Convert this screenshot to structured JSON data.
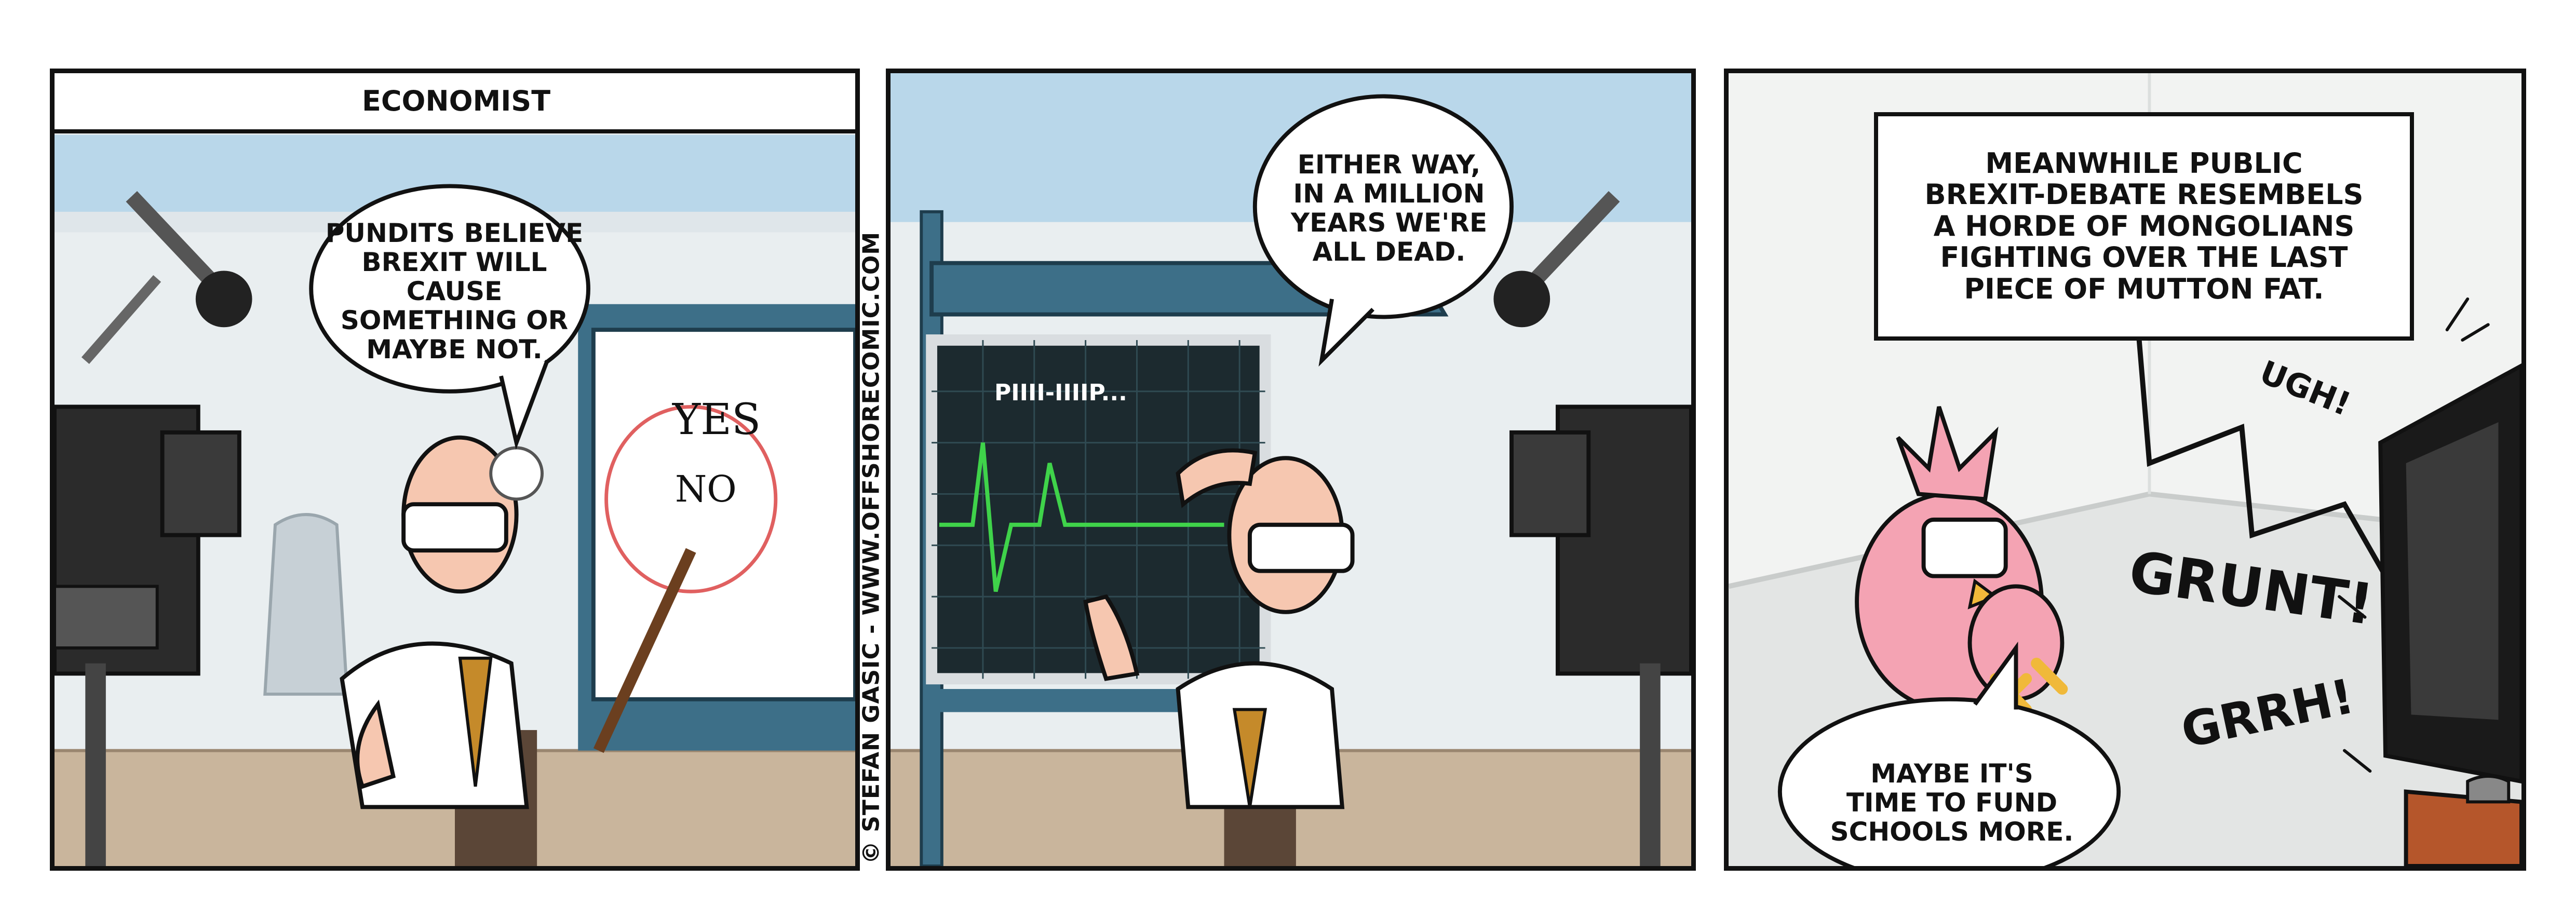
{
  "strip": {
    "credit": "© STEFAN GASIC - WWW.OFFSHORECOMIC.COM"
  },
  "panel1": {
    "caption": "ECONOMIST",
    "speech": "PUNDITS BELIEVE\nBREXIT WILL CAUSE\nSOMETHING OR\nMAYBE NOT.",
    "board_yes": "YES",
    "board_no": "NO"
  },
  "panel2": {
    "speech": "EITHER WAY,\nIN A MILLION\nYEARS WE'RE\nALL DEAD.",
    "monitor_text": "PIIII-IIIIP..."
  },
  "panel3": {
    "caption": "MEANWHILE PUBLIC\nBREXIT-DEBATE RESEMBELS\nA HORDE OF MONGOLIANS\nFIGHTING OVER THE LAST\nPIECE OF MUTTON FAT.",
    "speech": "MAYBE IT'S\nTIME TO FUND\nSCHOOLS MORE.",
    "sfx_ugh": "UGH!",
    "sfx_grunt": "GRUNT!",
    "sfx_grrh": "GRRH!"
  },
  "colors": {
    "wall": "#e9eef0",
    "window_blue": "#b9d7ea",
    "floor": "#c9b59c",
    "board_frame": "#3d6f88",
    "monitor_green": "#3fd34a",
    "bird_pink": "#f4a3b3",
    "desk_brown": "#b5562b"
  }
}
